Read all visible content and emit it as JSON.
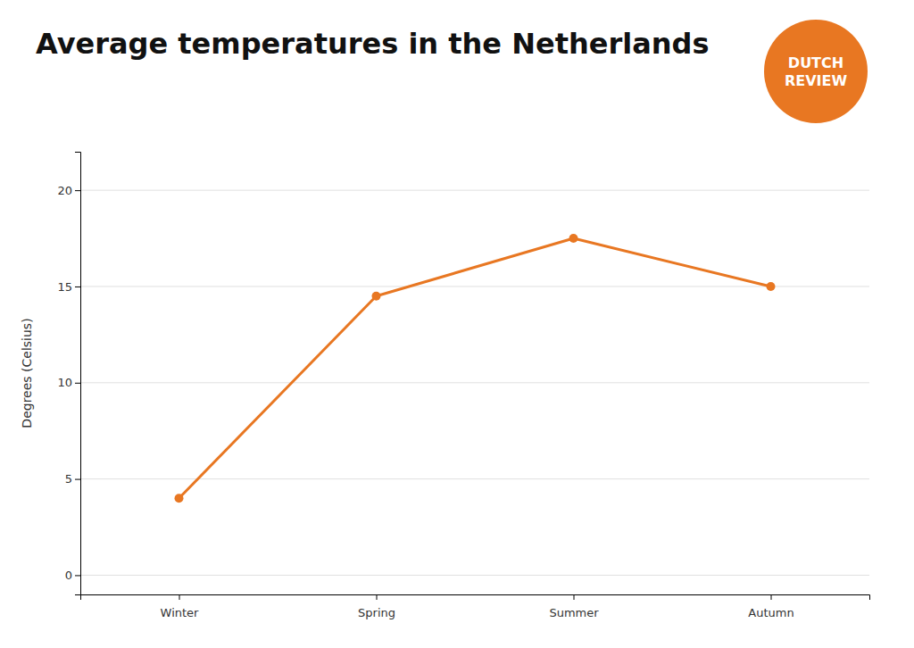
{
  "chart_data": {
    "type": "line",
    "title": "Average temperatures in the Netherlands",
    "categories": [
      "Winter",
      "Spring",
      "Summer",
      "Autumn"
    ],
    "values": [
      4,
      14.5,
      17.5,
      15
    ],
    "color": "#E87722",
    "ylabel": "Degrees (Celsius)",
    "ylim": [
      -1,
      22
    ],
    "yticks": [
      0,
      5,
      10,
      15,
      20
    ],
    "grid": true,
    "marker": "circle",
    "annotations": [
      "DUTCH",
      "REVIEW"
    ]
  }
}
